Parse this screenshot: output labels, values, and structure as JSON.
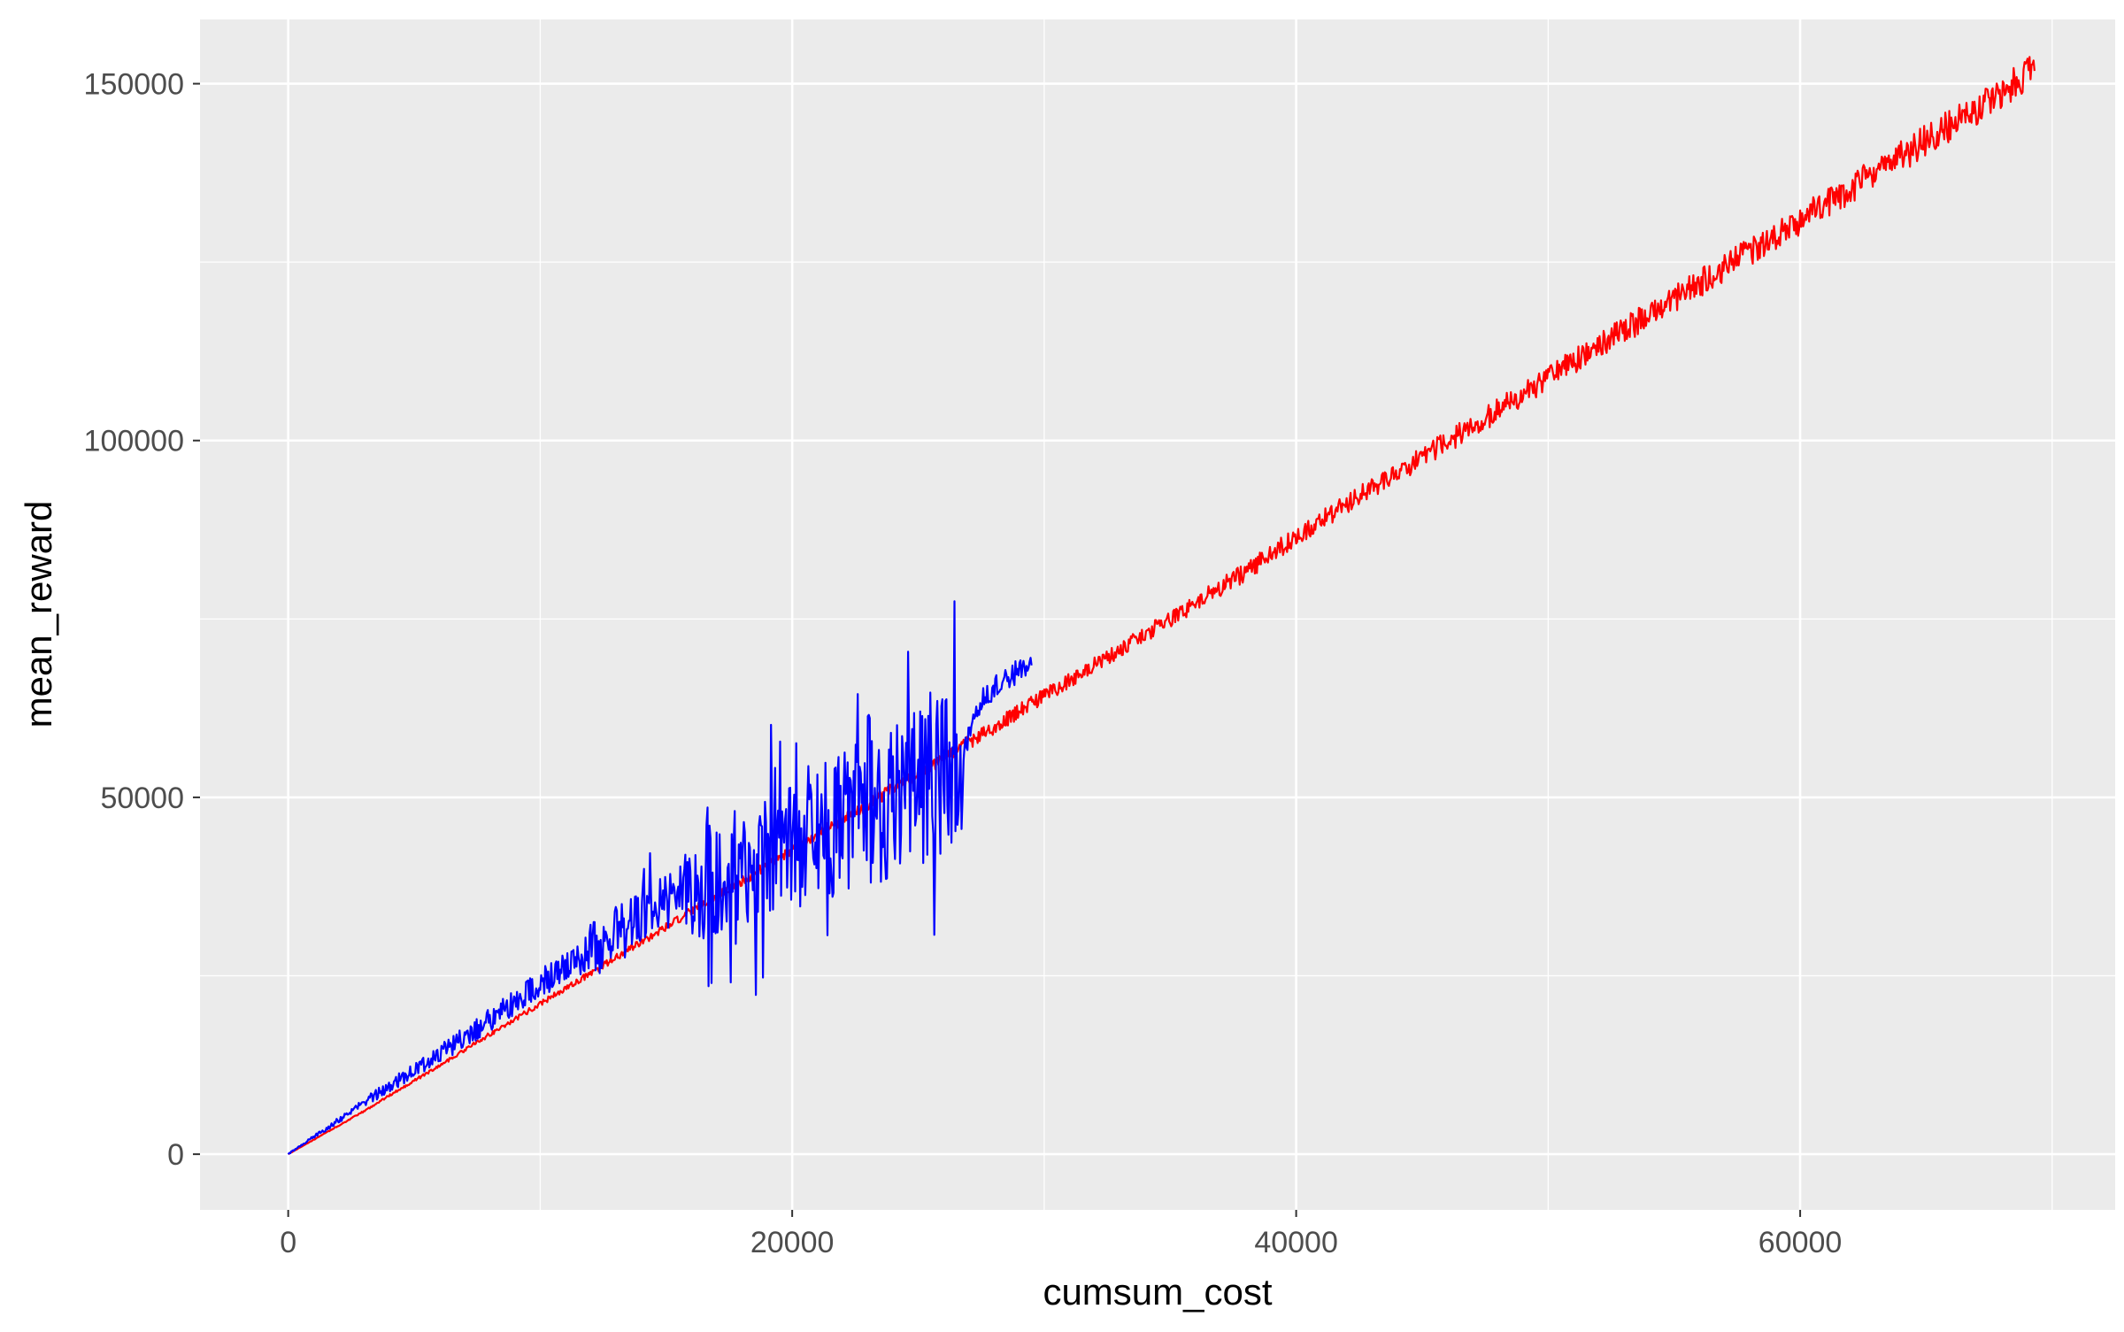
{
  "chart_data": {
    "type": "line",
    "title": "",
    "xlabel": "cumsum_cost",
    "ylabel": "mean_reward",
    "xlim": [
      -3500,
      72500
    ],
    "ylim": [
      -7800,
      159000
    ],
    "x_ticks": [
      0,
      20000,
      40000,
      60000
    ],
    "x_tick_labels": [
      "0",
      "20000",
      "40000",
      "60000"
    ],
    "x_minor_ticks": [
      10000,
      30000,
      50000,
      70000
    ],
    "y_ticks": [
      0,
      50000,
      100000,
      150000
    ],
    "y_tick_labels": [
      "0",
      "50000",
      "100000",
      "150000"
    ],
    "y_minor_ticks": [
      25000,
      75000,
      125000
    ],
    "grid": true,
    "legend": "none",
    "colors": {
      "panel": "#ebebeb",
      "grid": "#ffffff",
      "text": "#4d4d4d",
      "title": "#000000"
    },
    "series": [
      {
        "color": "#ff0000",
        "points": [
          [
            0,
            0
          ],
          [
            1000,
            2000
          ],
          [
            2000,
            4000
          ],
          [
            3000,
            6000
          ],
          [
            4000,
            8200
          ],
          [
            5000,
            10300
          ],
          [
            6000,
            12400
          ],
          [
            7000,
            14600
          ],
          [
            8000,
            16800
          ],
          [
            9000,
            18900
          ],
          [
            10000,
            21100
          ],
          [
            11000,
            23200
          ],
          [
            12000,
            25300
          ],
          [
            13000,
            27500
          ],
          [
            14000,
            29700
          ],
          [
            15000,
            31800
          ],
          [
            16000,
            34000
          ],
          [
            17000,
            36100
          ],
          [
            18000,
            38300
          ],
          [
            19000,
            40400
          ],
          [
            20000,
            42600
          ],
          [
            21000,
            44800
          ],
          [
            22000,
            46900
          ],
          [
            23000,
            49100
          ],
          [
            24000,
            51200
          ],
          [
            25000,
            53400
          ],
          [
            26000,
            55600
          ],
          [
            27000,
            57700
          ],
          [
            28000,
            59900
          ],
          [
            29000,
            62100
          ],
          [
            30000,
            64200
          ],
          [
            32000,
            68500
          ],
          [
            34000,
            72900
          ],
          [
            36000,
            77200
          ],
          [
            38000,
            81600
          ],
          [
            40000,
            86600
          ],
          [
            42000,
            91000
          ],
          [
            44000,
            95500
          ],
          [
            46000,
            99800
          ],
          [
            48000,
            104200
          ],
          [
            50000,
            108800
          ],
          [
            52000,
            113200
          ],
          [
            54000,
            117600
          ],
          [
            56000,
            122000
          ],
          [
            58000,
            126400
          ],
          [
            60000,
            130900
          ],
          [
            62000,
            135300
          ],
          [
            64000,
            139800
          ],
          [
            66000,
            144300
          ],
          [
            68000,
            148800
          ],
          [
            69300,
            151800
          ]
        ]
      },
      {
        "color": "#0000ff",
        "points": [
          [
            0,
            0
          ],
          [
            1000,
            2400
          ],
          [
            2000,
            4800
          ],
          [
            3000,
            7200
          ],
          [
            4000,
            9500
          ],
          [
            5000,
            11800
          ],
          [
            6000,
            14000
          ],
          [
            7000,
            16400
          ],
          [
            8000,
            18800
          ],
          [
            9000,
            21300
          ],
          [
            10000,
            23800
          ],
          [
            11000,
            26000
          ],
          [
            12000,
            28500
          ],
          [
            13000,
            31000
          ],
          [
            14000,
            33300
          ],
          [
            15000,
            35600
          ],
          [
            16000,
            37500
          ],
          [
            17000,
            39000
          ],
          [
            18000,
            40800
          ],
          [
            19000,
            42500
          ],
          [
            20000,
            44000
          ],
          [
            21000,
            45500
          ],
          [
            22000,
            46700
          ],
          [
            23000,
            47900
          ],
          [
            24000,
            49200
          ],
          [
            25000,
            51000
          ],
          [
            26000,
            52500
          ],
          [
            26800,
            56500
          ],
          [
            27500,
            63500
          ],
          [
            28500,
            66800
          ],
          [
            29500,
            68500
          ]
        ]
      }
    ]
  }
}
